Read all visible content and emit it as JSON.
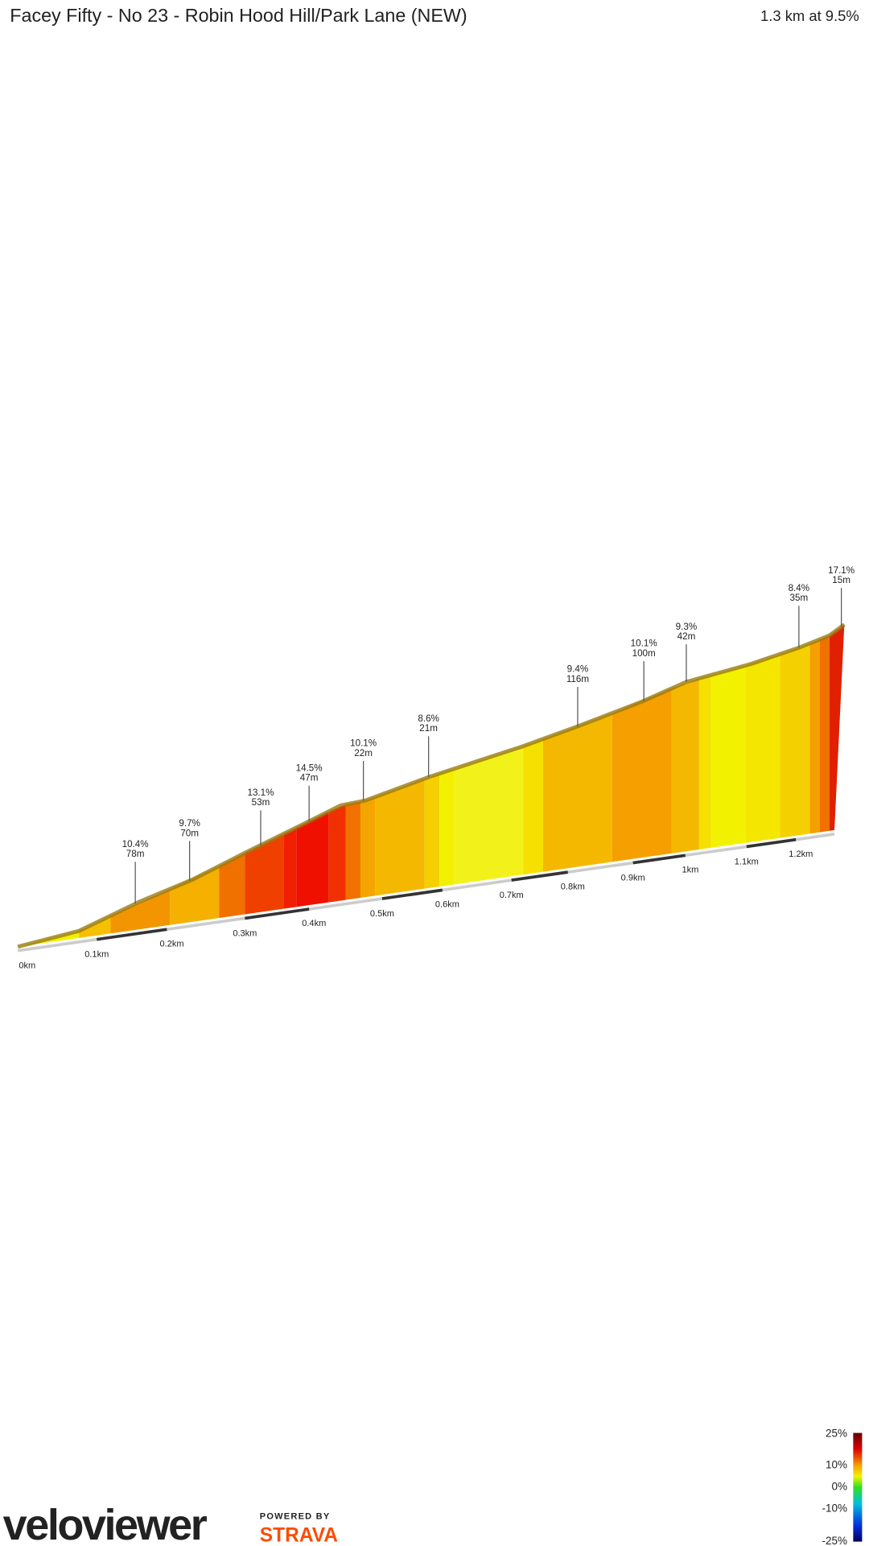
{
  "header": {
    "title": "Facey Fifty - No 23 - Robin Hood Hill/Park Lane (NEW)",
    "summary": "1.3 km at 9.5%"
  },
  "annotations": [
    {
      "grade": "10.4%",
      "length": "78m"
    },
    {
      "grade": "9.7%",
      "length": "70m"
    },
    {
      "grade": "13.1%",
      "length": "53m"
    },
    {
      "grade": "14.5%",
      "length": "47m"
    },
    {
      "grade": "10.1%",
      "length": "22m"
    },
    {
      "grade": "8.6%",
      "length": "21m"
    },
    {
      "grade": "9.4%",
      "length": "116m"
    },
    {
      "grade": "10.1%",
      "length": "100m"
    },
    {
      "grade": "9.3%",
      "length": "42m"
    },
    {
      "grade": "8.4%",
      "length": "35m"
    },
    {
      "grade": "17.1%",
      "length": "15m"
    }
  ],
  "distance_ticks": [
    "0km",
    "0.1km",
    "0.2km",
    "0.3km",
    "0.4km",
    "0.5km",
    "0.6km",
    "0.7km",
    "0.8km",
    "0.9km",
    "1km",
    "1.1km",
    "1.2km"
  ],
  "scale": {
    "ticks": [
      "25%",
      "10%",
      "0%",
      "-10%",
      "-25%"
    ]
  },
  "logo": {
    "brand": "veloviewer",
    "powered": "POWERED BY",
    "partner": "STRAVA"
  }
}
